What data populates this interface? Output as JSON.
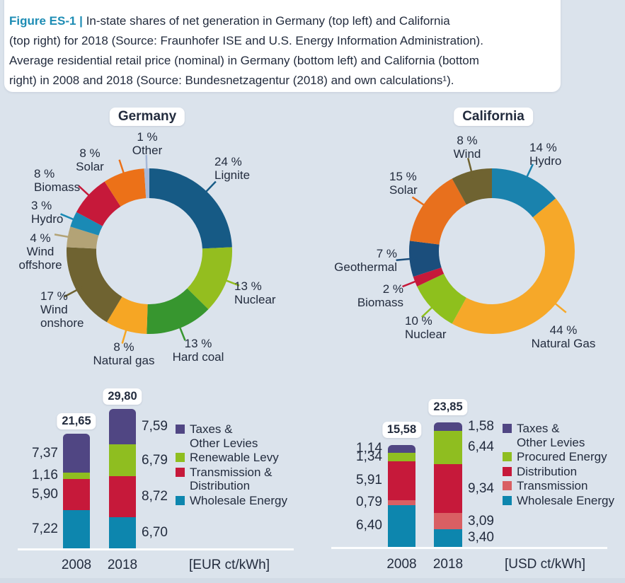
{
  "caption": {
    "prefix": "Figure ES-1 |",
    "lines": [
      "In-state shares of net generation in Germany (top left) and California",
      "(top right) for 2018 (Source: Fraunhofer ISE and U.S. Energy Information Administration).",
      "Average residential retail price (nominal) in Germany (bottom left) and California (bottom",
      "right) in 2008 and 2018 (Source: Bundesnetzagentur (2018) and own calculations¹)."
    ]
  },
  "colors": {
    "background": "#dbe3ec",
    "text": "#232c3e",
    "accent_teal": "#1d8cb4",
    "card": "#ffffff"
  },
  "chart_data": [
    {
      "type": "pie",
      "variant": "donut",
      "title": "Germany",
      "unit": "%",
      "slices": [
        {
          "name": "Lignite",
          "value": 24,
          "label": "24 %",
          "color": "#165a85"
        },
        {
          "name": "Nuclear",
          "value": 13,
          "label": "13 %",
          "color": "#94be1f"
        },
        {
          "name": "Hard coal",
          "value": 13,
          "label": "13 %",
          "color": "#37962f"
        },
        {
          "name": "Natural gas",
          "value": 8,
          "label": "8 %",
          "color": "#f6a624"
        },
        {
          "name": "Wind onshore",
          "value": 17,
          "label": "17 %",
          "color": "#6f6331",
          "display_name": "Wind\nonshore"
        },
        {
          "name": "Wind offshore",
          "value": 4,
          "label": "4 %",
          "color": "#b3a376",
          "display_name": "Wind\noffshore"
        },
        {
          "name": "Hydro",
          "value": 3,
          "label": "3 %",
          "color": "#1a8ab5"
        },
        {
          "name": "Biomass",
          "value": 8,
          "label": "8 %",
          "color": "#c6193a"
        },
        {
          "name": "Solar",
          "value": 8,
          "label": "8 %",
          "color": "#ec7118"
        },
        {
          "name": "Other",
          "value": 1,
          "label": "1 %",
          "color": "#a6b8d8"
        }
      ]
    },
    {
      "type": "pie",
      "variant": "donut",
      "title": "California",
      "unit": "%",
      "slices": [
        {
          "name": "Hydro",
          "value": 14,
          "label": "14 %",
          "color": "#1a82ad"
        },
        {
          "name": "Natural Gas",
          "value": 44,
          "label": "44 %",
          "color": "#f6a829"
        },
        {
          "name": "Nuclear",
          "value": 10,
          "label": "10 %",
          "color": "#8ec01d"
        },
        {
          "name": "Biomass",
          "value": 2,
          "label": "2 %",
          "color": "#c6193a"
        },
        {
          "name": "Geothermal",
          "value": 7,
          "label": "7 %",
          "color": "#1b4e7c"
        },
        {
          "name": "Solar",
          "value": 15,
          "label": "15 %",
          "color": "#e8701d"
        },
        {
          "name": "Wind",
          "value": 8,
          "label": "8 %",
          "color": "#6f6331"
        }
      ]
    },
    {
      "type": "bar",
      "variant": "stacked",
      "region": "Germany",
      "unit_label": "[EUR ct/kWh]",
      "categories": [
        "2008",
        "2018"
      ],
      "totals": [
        {
          "value": 21.65,
          "display": "21,65"
        },
        {
          "value": 29.8,
          "display": "29,80"
        }
      ],
      "series": [
        {
          "name": "Wholesale Energy",
          "color": "#0d86ae",
          "values": [
            7.22,
            6.7
          ],
          "displays": [
            "7,22",
            "6,70"
          ]
        },
        {
          "name": "Transmission & Distribution",
          "color": "#c6193a",
          "values": [
            5.9,
            8.72
          ],
          "displays": [
            "5,90",
            "8,72"
          ]
        },
        {
          "name": "Renewable Levy",
          "color": "#8fbe20",
          "values": [
            1.16,
            6.79
          ],
          "displays": [
            "1,16",
            "6,79"
          ]
        },
        {
          "name": "Taxes & Other Levies",
          "color": "#504683",
          "values": [
            7.37,
            7.59
          ],
          "displays": [
            "7,37",
            "7,59"
          ]
        }
      ],
      "legend": [
        {
          "lines": [
            "Taxes &",
            "Other Levies"
          ],
          "color": "#504683"
        },
        {
          "lines": [
            "Renewable Levy"
          ],
          "color": "#8fbe20"
        },
        {
          "lines": [
            "Transmission &",
            "Distribution"
          ],
          "color": "#c6193a"
        },
        {
          "lines": [
            "Wholesale Energy"
          ],
          "color": "#0d86ae"
        }
      ]
    },
    {
      "type": "bar",
      "variant": "stacked",
      "region": "California",
      "unit_label": "[USD ct/kWh]",
      "categories": [
        "2008",
        "2018"
      ],
      "totals": [
        {
          "value": 15.58,
          "display": "15,58"
        },
        {
          "value": 23.85,
          "display": "23,85"
        }
      ],
      "series": [
        {
          "name": "Wholesale Energy",
          "color": "#0d86ae",
          "values": [
            6.4,
            3.4
          ],
          "displays": [
            "6,40",
            "3,40"
          ]
        },
        {
          "name": "Transmission",
          "color": "#d95f63",
          "values": [
            0.79,
            3.09
          ],
          "displays": [
            "0,79",
            "3,09"
          ]
        },
        {
          "name": "Distribution",
          "color": "#c6193a",
          "values": [
            5.91,
            9.34
          ],
          "displays": [
            "5,91",
            "9,34"
          ]
        },
        {
          "name": "Procured Energy",
          "color": "#8fbe20",
          "values": [
            1.34,
            6.44
          ],
          "displays": [
            "1,34",
            "6,44"
          ]
        },
        {
          "name": "Taxes & Other Levies",
          "color": "#504683",
          "values": [
            1.14,
            1.58
          ],
          "displays": [
            "1,14",
            "1,58"
          ]
        }
      ],
      "legend": [
        {
          "lines": [
            "Taxes &",
            "Other Levies"
          ],
          "color": "#504683"
        },
        {
          "lines": [
            "Procured Energy"
          ],
          "color": "#8fbe20"
        },
        {
          "lines": [
            "Distribution"
          ],
          "color": "#c6193a"
        },
        {
          "lines": [
            "Transmission"
          ],
          "color": "#d95f63"
        },
        {
          "lines": [
            "Wholesale Energy"
          ],
          "color": "#0d86ae"
        }
      ]
    }
  ]
}
